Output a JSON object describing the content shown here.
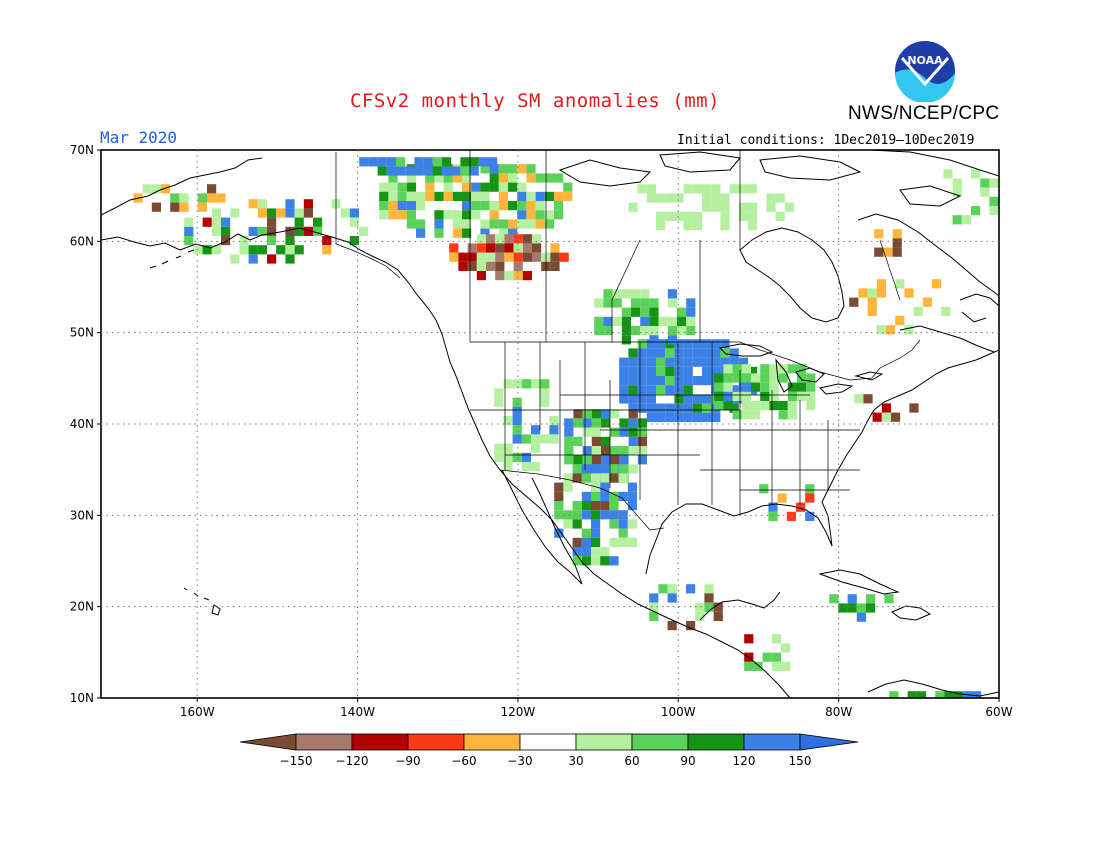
{
  "title": "CFSv2 monthly SM anomalies (mm)",
  "agency": "NWS/NCEP/CPC",
  "logo_text": "NOAA",
  "period": "Mar 2020",
  "initial_conditions": "Initial conditions: 1Dec2019–10Dec2019",
  "map": {
    "lat_labels": [
      "70N",
      "60N",
      "50N",
      "40N",
      "30N",
      "20N",
      "10N"
    ],
    "lon_labels": [
      "160W",
      "140W",
      "120W",
      "100W",
      "80W",
      "60W"
    ],
    "lon_range": [
      -172,
      -60
    ],
    "lat_range": [
      10,
      70
    ]
  },
  "colorbar": {
    "labels": [
      "−150",
      "−120",
      "−90",
      "−60",
      "−30",
      "30",
      "60",
      "90",
      "120",
      "150"
    ],
    "colors": [
      "#7a4a34",
      "#a87a6e",
      "#b40000",
      "#ff3a14",
      "#ffb43c",
      "#ffffff",
      "#b4f0a0",
      "#5ad25a",
      "#169416",
      "#3c82e6",
      "#2f6fe0"
    ]
  },
  "anomaly_regions": [
    {
      "name": "northern-plains-wet",
      "class": "150",
      "color": "#3c82e6"
    },
    {
      "name": "southwest-wet",
      "class": "150",
      "color": "#3c82e6"
    },
    {
      "name": "midwest-wet",
      "class": "90",
      "color": "#5ad25a"
    },
    {
      "name": "western-canada-dry",
      "class": "-120",
      "color": "#b40000"
    },
    {
      "name": "alaska-mixed",
      "class": "-60",
      "color": "#ffb43c"
    }
  ]
}
